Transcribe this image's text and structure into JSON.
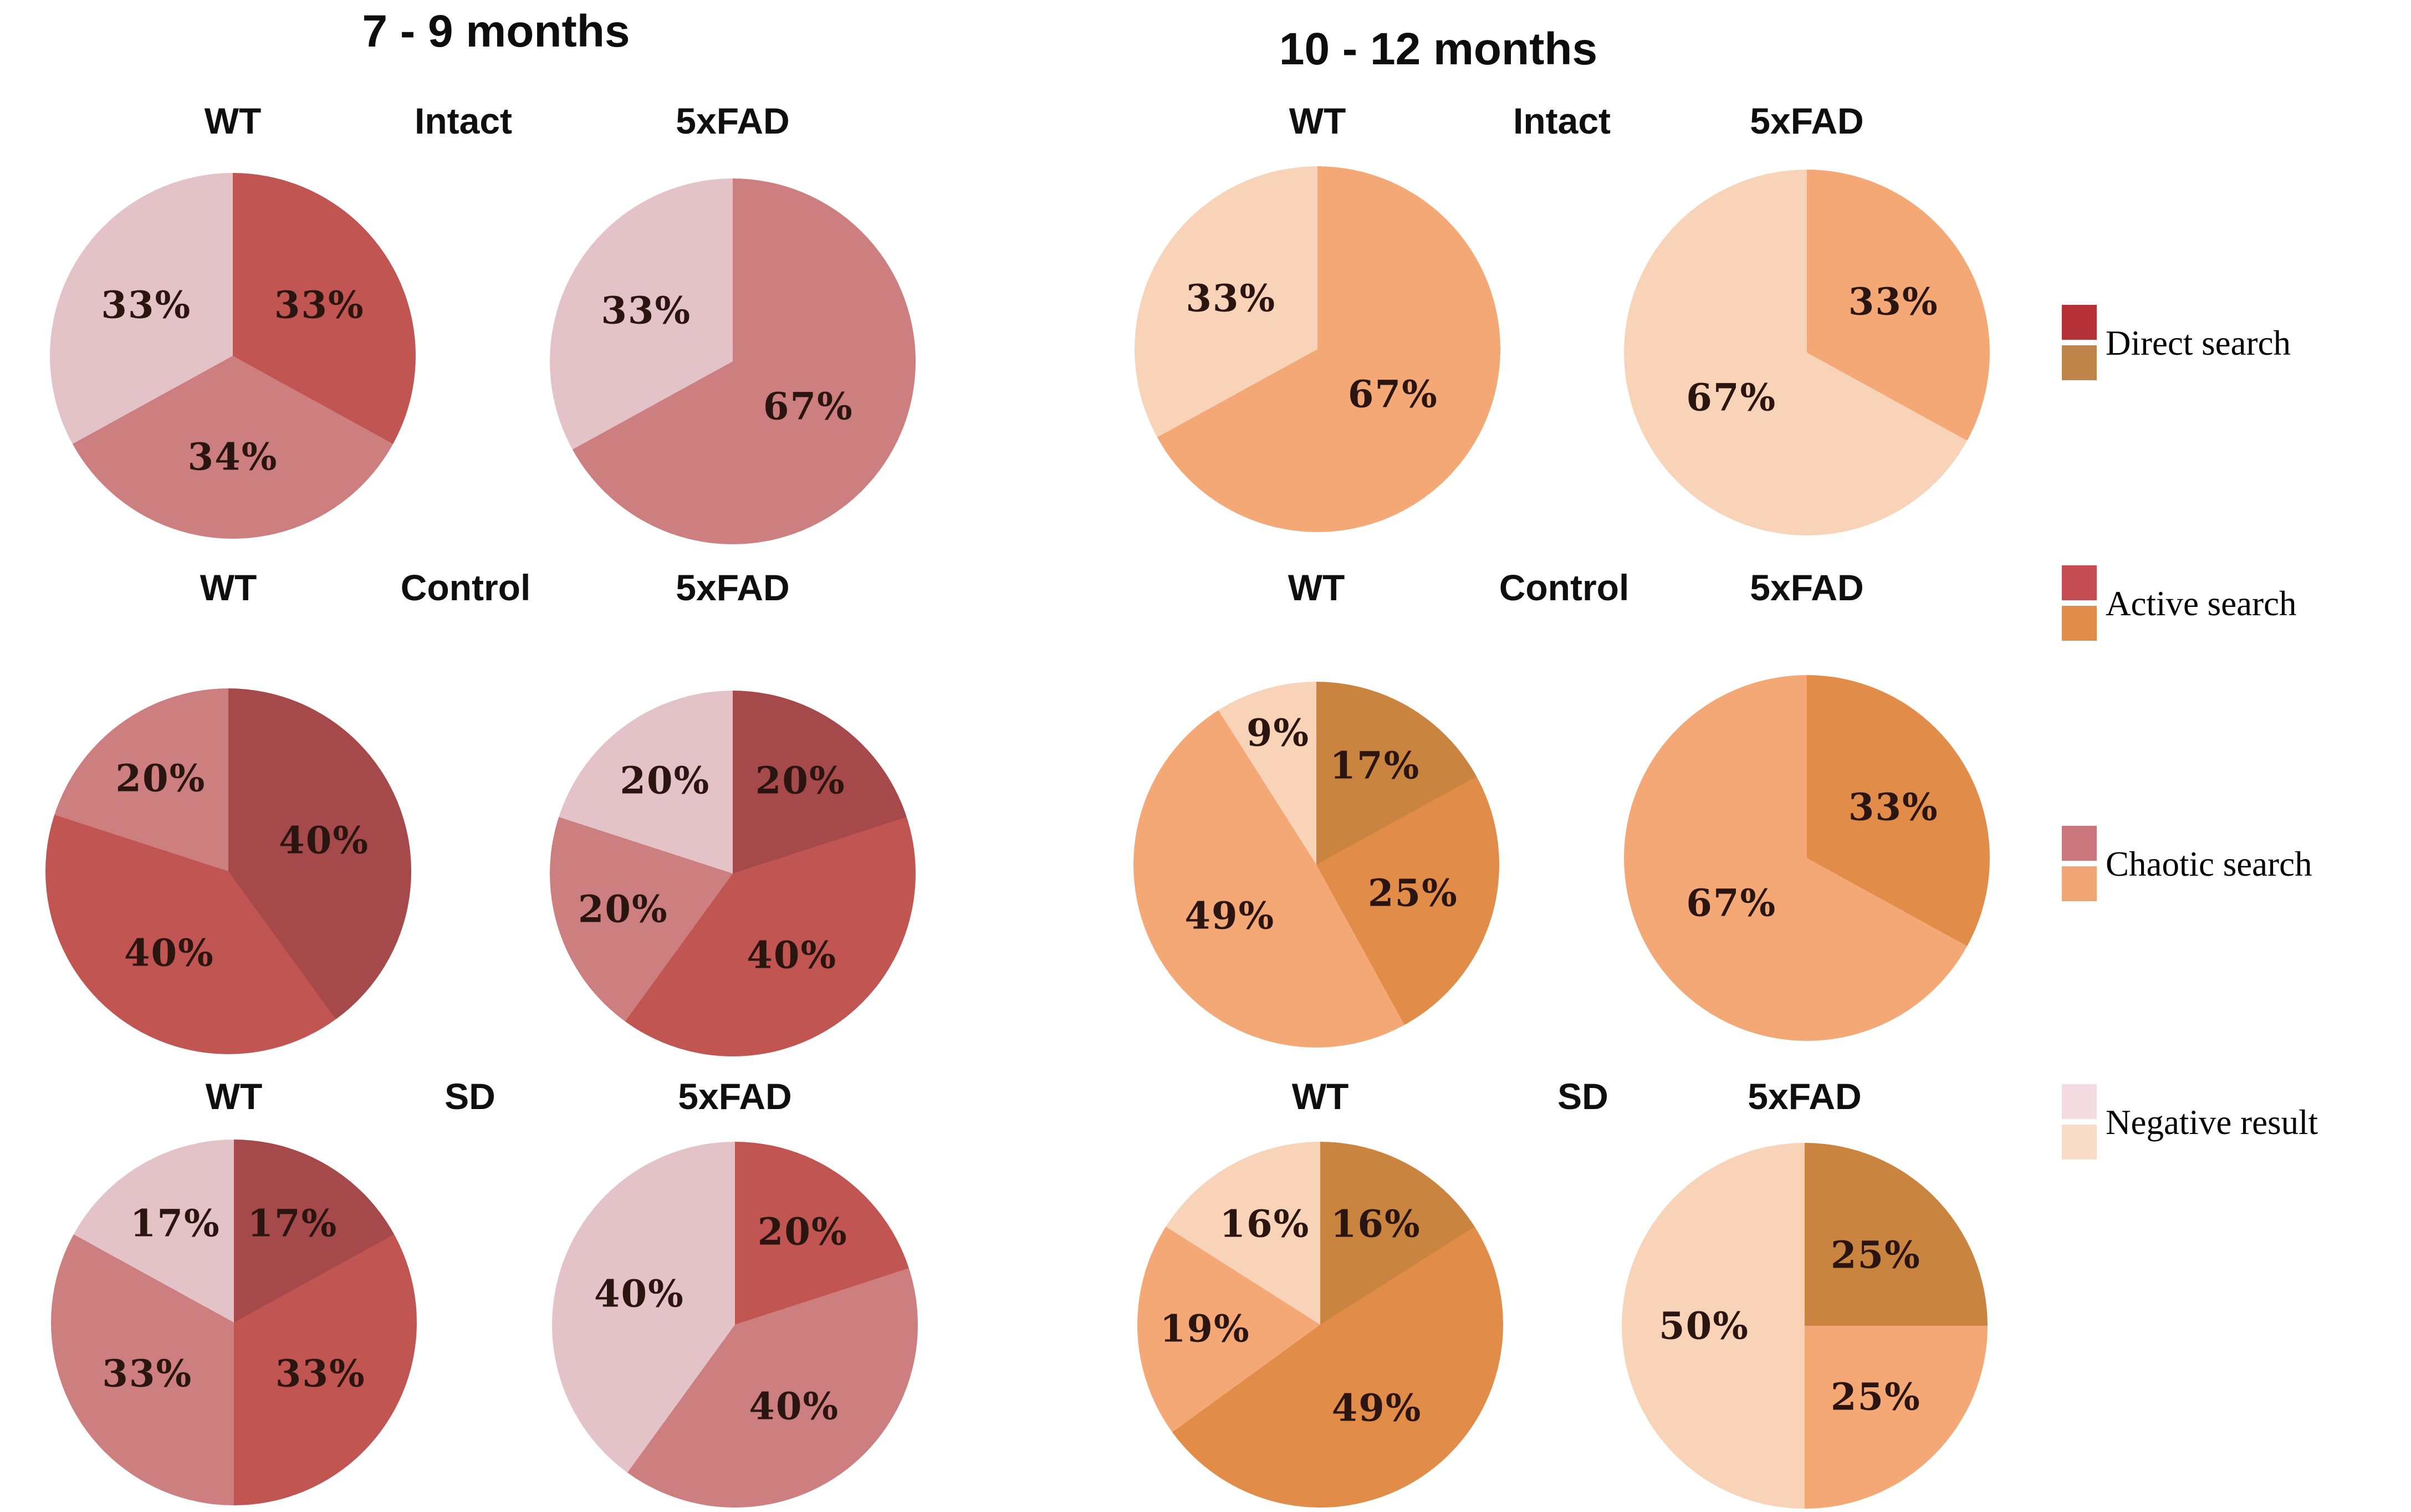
{
  "chart_data": {
    "type": "pie",
    "description": "Search strategy distribution pies for WT and 5xFAD mice across Intact, Control and SD conditions at two ages",
    "percent_label_color": "#2b1510",
    "groups": [
      {
        "title": "7 - 9 months",
        "palette": {
          "Direct search": "#a5494a",
          "Active search": "#c05552",
          "Chaotic search": "#cd7f80",
          "Negative result": "#e4c3c8"
        },
        "rows": [
          {
            "condition": "Intact",
            "pies": [
              {
                "genotype": "WT",
                "slices": [
                  {
                    "category": "Active search",
                    "value": 33,
                    "text": "33%"
                  },
                  {
                    "category": "Chaotic search",
                    "value": 34,
                    "text": "34%"
                  },
                  {
                    "category": "Negative result",
                    "value": 33,
                    "text": "33%"
                  }
                ]
              },
              {
                "genotype": "5xFAD",
                "slices": [
                  {
                    "category": "Chaotic search",
                    "value": 67,
                    "text": "67%"
                  },
                  {
                    "category": "Negative result",
                    "value": 33,
                    "text": "33%"
                  }
                ]
              }
            ]
          },
          {
            "condition": "Control",
            "pies": [
              {
                "genotype": "WT",
                "slices": [
                  {
                    "category": "Direct search",
                    "value": 40,
                    "text": "40%"
                  },
                  {
                    "category": "Active search",
                    "value": 40,
                    "text": "40%"
                  },
                  {
                    "category": "Chaotic search",
                    "value": 20,
                    "text": "20%"
                  }
                ]
              },
              {
                "genotype": "5xFAD",
                "slices": [
                  {
                    "category": "Direct search",
                    "value": 20,
                    "text": "20%"
                  },
                  {
                    "category": "Active search",
                    "value": 40,
                    "text": "40%"
                  },
                  {
                    "category": "Chaotic search",
                    "value": 20,
                    "text": "20%"
                  },
                  {
                    "category": "Negative result",
                    "value": 20,
                    "text": "20%"
                  }
                ]
              }
            ]
          },
          {
            "condition": "SD",
            "pies": [
              {
                "genotype": "WT",
                "slices": [
                  {
                    "category": "Direct search",
                    "value": 17,
                    "text": "17%"
                  },
                  {
                    "category": "Active search",
                    "value": 33,
                    "text": "33%"
                  },
                  {
                    "category": "Chaotic search",
                    "value": 33,
                    "text": "33%"
                  },
                  {
                    "category": "Negative result",
                    "value": 17,
                    "text": "17%"
                  }
                ]
              },
              {
                "genotype": "5xFAD",
                "slices": [
                  {
                    "category": "Active search",
                    "value": 20,
                    "text": "20%"
                  },
                  {
                    "category": "Chaotic search",
                    "value": 40,
                    "text": "40%"
                  },
                  {
                    "category": "Negative result",
                    "value": 40,
                    "text": "40%"
                  }
                ]
              }
            ]
          }
        ]
      },
      {
        "title": "10 - 12 months",
        "palette": {
          "Direct search": "#c98440",
          "Active search": "#e28c49",
          "Chaotic search": "#f3a875",
          "Negative result": "#f8d3b7"
        },
        "rows": [
          {
            "condition": "Intact",
            "pies": [
              {
                "genotype": "WT",
                "slices": [
                  {
                    "category": "Chaotic search",
                    "value": 67,
                    "text": "67%"
                  },
                  {
                    "category": "Negative result",
                    "value": 33,
                    "text": "33%"
                  }
                ]
              },
              {
                "genotype": "5xFAD",
                "slices": [
                  {
                    "category": "Chaotic search",
                    "value": 33,
                    "text": "33%"
                  },
                  {
                    "category": "Negative result",
                    "value": 67,
                    "text": "67%"
                  }
                ]
              }
            ]
          },
          {
            "condition": "Control",
            "pies": [
              {
                "genotype": "WT",
                "slices": [
                  {
                    "category": "Direct search",
                    "value": 17,
                    "text": "17%"
                  },
                  {
                    "category": "Active search",
                    "value": 25,
                    "text": "25%"
                  },
                  {
                    "category": "Chaotic search",
                    "value": 49,
                    "text": "49%"
                  },
                  {
                    "category": "Negative result",
                    "value": 9,
                    "text": "9%"
                  }
                ]
              },
              {
                "genotype": "5xFAD",
                "slices": [
                  {
                    "category": "Active search",
                    "value": 33,
                    "text": "33%"
                  },
                  {
                    "category": "Chaotic search",
                    "value": 67,
                    "text": "67%"
                  }
                ]
              }
            ]
          },
          {
            "condition": "SD",
            "pies": [
              {
                "genotype": "WT",
                "slices": [
                  {
                    "category": "Direct search",
                    "value": 16,
                    "text": "16%"
                  },
                  {
                    "category": "Active search",
                    "value": 49,
                    "text": "49%"
                  },
                  {
                    "category": "Chaotic search",
                    "value": 19,
                    "text": "19%"
                  },
                  {
                    "category": "Negative result",
                    "value": 16,
                    "text": "16%"
                  }
                ]
              },
              {
                "genotype": "5xFAD",
                "slices": [
                  {
                    "category": "Direct search",
                    "value": 25,
                    "text": "25%"
                  },
                  {
                    "category": "Chaotic search",
                    "value": 25,
                    "text": "25%"
                  },
                  {
                    "category": "Negative result",
                    "value": 50,
                    "text": "50%"
                  }
                ]
              }
            ]
          }
        ]
      }
    ],
    "legend": {
      "position": "right",
      "entries": [
        {
          "label": "Direct search",
          "swatches": [
            "#b43138",
            "#bf8449"
          ]
        },
        {
          "label": "Active search",
          "swatches": [
            "#c34d50",
            "#e28c49"
          ]
        },
        {
          "label": "Chaotic search",
          "swatches": [
            "#cb767c",
            "#f0a674"
          ]
        },
        {
          "label": "Negative result",
          "swatches": [
            "#f3dde3",
            "#f8dcc5"
          ]
        }
      ]
    }
  }
}
